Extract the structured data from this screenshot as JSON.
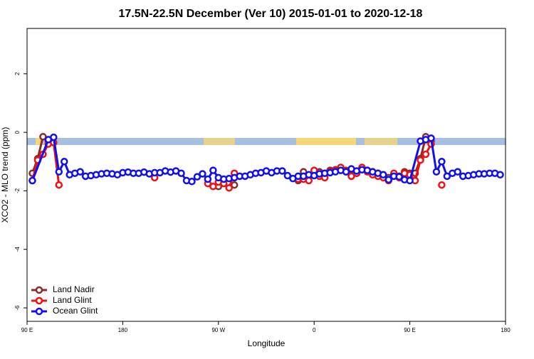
{
  "chart_data": {
    "type": "line",
    "title": "17.5N-22.5N December (Ver 10)   2015-01-01 to 2020-12-18",
    "x_label": "Longitude",
    "y_label": "XCO2 - MLO trend (ppm)",
    "xlim": [
      90,
      540
    ],
    "ylim": [
      -6.46,
      3.55
    ],
    "xticks": [
      {
        "value": 90,
        "label": "90 E"
      },
      180,
      {
        "value": 270,
        "label": "90 W"
      },
      {
        "value": 360,
        "label": "0"
      },
      {
        "value": 450,
        "label": "90 E"
      },
      {
        "value": 540,
        "label": "180"
      }
    ],
    "yticks": [
      -6,
      -4,
      -2,
      0,
      2
    ],
    "legend": "bottom-left",
    "series": [
      {
        "name": "Land Nadir",
        "color": "#8b2a2a",
        "x": [
          95,
          100,
          105,
          110,
          115,
          270,
          275,
          285,
          290,
          345,
          350,
          355,
          360,
          365,
          370,
          375,
          380,
          385,
          390,
          395,
          400,
          405,
          410,
          415,
          420,
          425,
          430,
          435,
          440,
          445,
          450,
          455,
          460,
          465,
          470
        ],
        "values": [
          -1.4,
          -0.9,
          -0.15,
          -0.3,
          null,
          -1.85,
          null,
          -1.8,
          null,
          -1.65,
          -1.35,
          -1.5,
          -1.45,
          -1.35,
          -1.4,
          -1.3,
          -1.28,
          -1.3,
          -1.35,
          -1.45,
          -1.4,
          -1.25,
          -1.3,
          -1.35,
          -1.4,
          -1.45,
          -1.55,
          -1.45,
          -1.5,
          -1.35,
          -1.4,
          -1.4,
          -0.9,
          -0.15,
          -0.3
        ]
      },
      {
        "name": "Land Glint",
        "color": "#ee1111",
        "x": [
          95,
          100,
          105,
          110,
          115,
          120,
          125,
          210,
          215,
          260,
          265,
          270,
          275,
          280,
          285,
          290,
          345,
          350,
          355,
          360,
          365,
          370,
          375,
          380,
          385,
          390,
          395,
          400,
          405,
          410,
          415,
          420,
          425,
          430,
          435,
          440,
          445,
          450,
          455,
          460,
          465,
          470,
          475,
          480
        ],
        "values": [
          -1.65,
          -0.95,
          -0.75,
          -0.4,
          -0.35,
          -1.8,
          null,
          -1.55,
          null,
          -1.75,
          -1.85,
          -1.7,
          -1.75,
          -1.9,
          -1.4,
          null,
          -1.6,
          -1.6,
          -1.65,
          -1.3,
          -1.5,
          -1.55,
          -1.35,
          -1.3,
          -1.2,
          -1.3,
          -1.5,
          -1.4,
          -1.2,
          -1.35,
          -1.45,
          -1.5,
          -1.55,
          -1.65,
          -1.4,
          -1.55,
          -1.4,
          -1.45,
          -1.65,
          -0.95,
          -0.75,
          -0.4,
          null,
          -1.8
        ]
      },
      {
        "name": "Ocean Glint",
        "color": "#1010ee",
        "x": [
          95,
          110,
          115,
          120,
          125,
          130,
          135,
          140,
          145,
          150,
          155,
          160,
          165,
          170,
          175,
          180,
          185,
          190,
          195,
          200,
          205,
          210,
          215,
          220,
          225,
          230,
          235,
          240,
          245,
          250,
          255,
          260,
          265,
          270,
          275,
          280,
          285,
          290,
          295,
          300,
          305,
          310,
          315,
          320,
          325,
          330,
          335,
          340,
          345,
          350,
          355,
          360,
          365,
          370,
          375,
          380,
          385,
          390,
          395,
          400,
          405,
          410,
          415,
          420,
          425,
          430,
          435,
          440,
          445,
          450,
          460,
          465,
          470,
          475,
          480,
          485,
          490,
          495,
          500,
          505,
          510,
          515,
          520,
          525,
          530,
          535
        ],
        "values": [
          -1.65,
          -0.25,
          -0.17,
          -1.35,
          -1.0,
          -1.45,
          -1.4,
          -1.35,
          -1.5,
          -1.48,
          -1.45,
          -1.42,
          -1.4,
          -1.42,
          -1.45,
          -1.38,
          -1.36,
          -1.4,
          -1.4,
          -1.36,
          -1.42,
          -1.38,
          -1.38,
          -1.32,
          -1.36,
          -1.32,
          -1.4,
          -1.65,
          -1.68,
          -1.52,
          -1.42,
          -1.6,
          -1.3,
          -1.55,
          -1.6,
          -1.58,
          -1.55,
          -1.5,
          -1.5,
          -1.45,
          -1.4,
          -1.38,
          -1.32,
          -1.38,
          -1.32,
          -1.32,
          -1.48,
          -1.58,
          -1.5,
          -1.5,
          -1.45,
          -1.48,
          -1.42,
          -1.4,
          -1.38,
          -1.35,
          -1.3,
          -1.35,
          -1.25,
          -1.32,
          -1.28,
          -1.3,
          -1.35,
          -1.4,
          -1.45,
          -1.62,
          -1.5,
          -1.52,
          -1.62,
          -1.65,
          -0.3,
          -0.25,
          -0.2,
          -1.35,
          -1.0,
          -1.5,
          -1.4,
          -1.35,
          -1.5,
          -1.48,
          -1.45,
          -1.42,
          -1.42,
          -1.4,
          -1.4,
          -1.45
        ]
      }
    ]
  }
}
